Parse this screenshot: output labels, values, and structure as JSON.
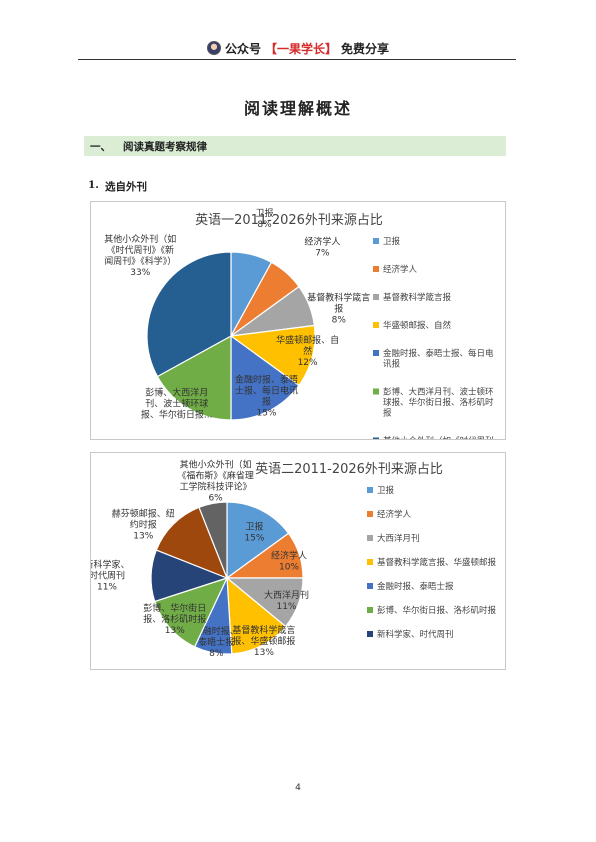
{
  "header": {
    "prefix": "公众号",
    "brand": "【一果学长】",
    "suffix": "免费分享"
  },
  "page_title": "阅读理解概述",
  "section": {
    "number": "一、",
    "title": "阅读真题考察规律"
  },
  "subsection": {
    "number": "1.",
    "title": "选自外刊"
  },
  "page_number": "4",
  "chart_data": [
    {
      "type": "pie",
      "title": "英语一2011-2026外刊来源占比",
      "legend_position": "right",
      "slices": [
        {
          "legend": "卫报",
          "label": [
            "卫报",
            "8%"
          ],
          "value": 8,
          "color": "#5b9bd5"
        },
        {
          "legend": "经济学人",
          "label": [
            "经济学人",
            "7%"
          ],
          "value": 7,
          "color": "#ed7d31"
        },
        {
          "legend": "基督教科学箴言报",
          "label": [
            "基督教科学箴言",
            "报",
            "8%"
          ],
          "value": 8,
          "color": "#a5a5a5"
        },
        {
          "legend": "华盛顿邮报、自然",
          "label": [
            "华盛顿邮报、自",
            "然",
            "12%"
          ],
          "value": 12,
          "color": "#ffc000"
        },
        {
          "legend": "金融时报、泰晤士报、每日电讯报",
          "label": [
            "金融时报、泰晤",
            "士报、每日电讯",
            "报",
            "15%"
          ],
          "value": 15,
          "color": "#4472c4"
        },
        {
          "legend": "彭博、大西洋月刊、波士顿环球报、华尔街日报、洛杉矶时报",
          "label": [
            "彭博、大西洋月",
            "刊、波士顿环球",
            "报、华尔街日报..."
          ],
          "value": 17,
          "color": "#70ad47"
        },
        {
          "legend": "其他小众外刊（如《时代周刊》《新闻周刊》《科学》）",
          "label": [
            "其他小众外刊（如",
            "《时代周刊》《新",
            "闻周刊》《科学》）",
            "33%"
          ],
          "value": 33,
          "color": "#255e91"
        }
      ]
    },
    {
      "type": "pie",
      "title": "英语二2011-2026外刊来源占比",
      "legend_position": "right",
      "slices": [
        {
          "legend": "卫报",
          "label": [
            "卫报",
            "15%"
          ],
          "value": 15,
          "color": "#5b9bd5"
        },
        {
          "legend": "经济学人",
          "label": [
            "经济学人",
            "10%"
          ],
          "value": 10,
          "color": "#ed7d31"
        },
        {
          "legend": "大西洋月刊",
          "label": [
            "大西洋月刊",
            "11%"
          ],
          "value": 11,
          "color": "#a5a5a5"
        },
        {
          "legend": "基督教科学箴言报、华盛顿邮报",
          "label": [
            "基督教科学箴言",
            "报、华盛顿邮报",
            "13%"
          ],
          "value": 13,
          "color": "#ffc000"
        },
        {
          "legend": "金融时报、泰晤士报",
          "label": [
            "金融时报、",
            "泰晤士报",
            "8%"
          ],
          "value": 8,
          "color": "#4472c4"
        },
        {
          "legend": "彭博、华尔街日报、洛杉矶时报",
          "label": [
            "彭博、华尔街日",
            "报、洛杉矶时报",
            "13%"
          ],
          "value": 13,
          "color": "#70ad47"
        },
        {
          "legend": "新科学家、时代周刊",
          "label": [
            "新科学家、",
            "时代周刊",
            "11%"
          ],
          "value": 11,
          "color": "#264478"
        },
        {
          "legend": "",
          "label": [
            "赫芬顿邮报、纽",
            "约时报",
            "13%"
          ],
          "value": 13,
          "color": "#9e480e"
        },
        {
          "legend": "",
          "label": [
            "其他小众外刊（如",
            "《福布斯》《麻省理",
            "工学院科技评论》",
            "6%"
          ],
          "value": 6,
          "color": "#636363"
        }
      ]
    }
  ]
}
